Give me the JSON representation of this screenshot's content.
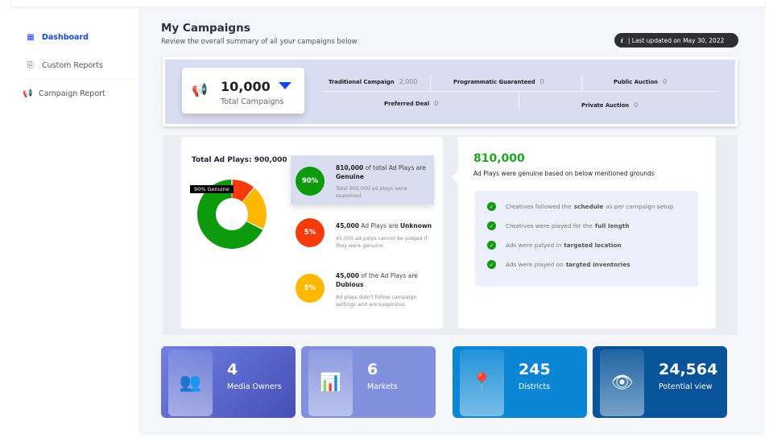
{
  "sidebar": {
    "items": [
      {
        "label": "Dashboard",
        "icon": "grid-icon",
        "active": true
      },
      {
        "label": "Custom Reports",
        "icon": "report-icon"
      },
      {
        "label": "Campaign Report",
        "icon": "megaphone-icon"
      }
    ]
  },
  "header": {
    "title": "My Campaigns",
    "subtitle": "Review the overall summary of all your campaigns below",
    "last_updated": "| Last updated on May 30, 2022",
    "info_icon": "i"
  },
  "summary": {
    "total": "10,000",
    "total_label": "Total Campaigns",
    "accent": "#1447e6",
    "types": [
      {
        "label": "Traditional Campaign",
        "value": "2,000"
      },
      {
        "label": "Programmatic Guaranteed",
        "value": "0"
      },
      {
        "label": "Public Auction",
        "value": "0"
      },
      {
        "label": "Preferred Deal",
        "value": "0"
      },
      {
        "label": "Private Auction",
        "value": "0"
      }
    ]
  },
  "plays": {
    "title": "Total Ad Plays: 900,000",
    "tooltip": "90% Genuine",
    "items": [
      {
        "pct": "90%",
        "num": "810,000",
        "pre": "of total Ad Plays are",
        "key": "Genuine",
        "desc": "Total 900,000 ad plays were examined",
        "color": "#0d9a0d"
      },
      {
        "pct": "5%",
        "num": "45,000",
        "pre": "Ad Plays are",
        "key": "Unknown",
        "desc": "45,000 ad palys cannot be judged if they were genuine",
        "color": "#f53b0c"
      },
      {
        "pct": "5%",
        "num": "45,000",
        "pre": "of the Ad Plays are",
        "key": "Dubious",
        "desc": "Ad plays didn't follow campaign settings and are suspicious",
        "color": "#ffb800"
      }
    ]
  },
  "genuine": {
    "value": "810,000",
    "desc": "Ad Plays were genuine based on below mentioned grounds",
    "grounds": [
      {
        "a": "Creatives followed the",
        "b": "schedule",
        "c": "as per campaign setup"
      },
      {
        "a": "Creatives were played for the",
        "b": "full length",
        "c": ""
      },
      {
        "a": "Ads were palyed in",
        "b": "targeted location",
        "c": ""
      },
      {
        "a": "Ads were played on",
        "b": "targted inventories",
        "c": ""
      }
    ]
  },
  "stats": [
    {
      "value": "4",
      "label": "Media Owners",
      "icon": "people-icon"
    },
    {
      "value": "6",
      "label": "Markets",
      "icon": "growth-chart-icon"
    },
    {
      "value": "245",
      "label": "Districts",
      "icon": "map-pin-icon"
    },
    {
      "value": "24,564",
      "label": "Potential view",
      "icon": "eye-icon"
    }
  ]
}
